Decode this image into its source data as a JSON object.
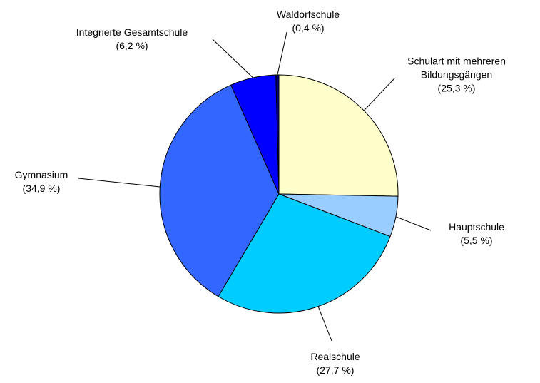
{
  "chart_data": {
    "type": "pie",
    "categories": [
      "Schulart mit mehreren Bildungsgängen",
      "Hauptschule",
      "Realschule",
      "Gymnasium",
      "Integrierte Gesamtschule",
      "Waldorfschule"
    ],
    "values": [
      25.3,
      5.5,
      27.7,
      34.9,
      6.2,
      0.4
    ],
    "value_labels": [
      "(25,3 %)",
      "(5,5 %)",
      "(27,7 %)",
      "(34,9 %)",
      "(6,2 %)",
      "(0,4 %)"
    ],
    "colors": [
      "#FFFFCC",
      "#99CCFF",
      "#00CCFF",
      "#3366FF",
      "#0000FF",
      "#000080"
    ]
  }
}
